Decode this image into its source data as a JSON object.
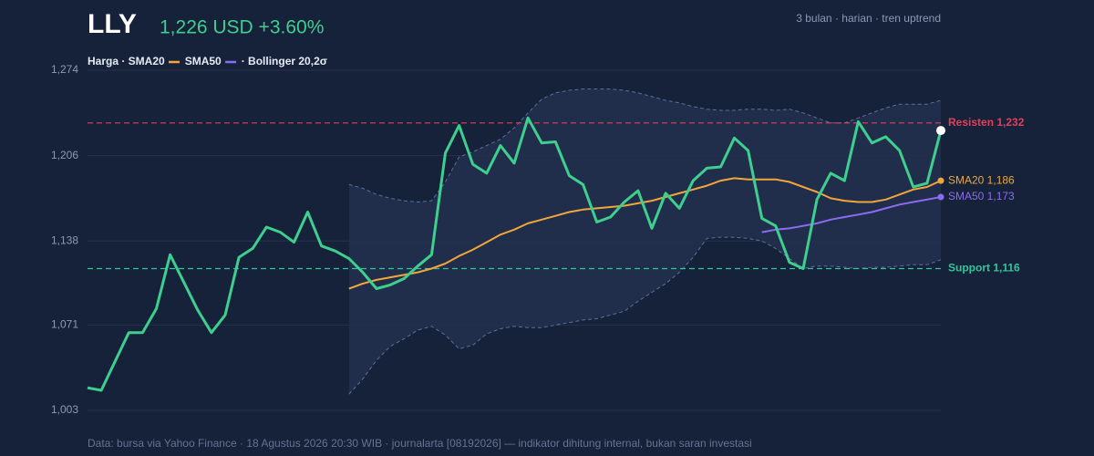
{
  "chart_data": {
    "type": "line",
    "title": "LLY",
    "price_text": "1,226 USD +3.60%",
    "subtitle": "3 bulan · harian · tren uptrend",
    "legend_text": [
      "Harga · SMA20",
      "SMA50",
      "· Bollinger 20,2σ"
    ],
    "footer": "Data: bursa via Yahoo Finance · 18 Agustus 2026 20:30 WIB · journalarta [08192026] — indikator dihitung internal, bukan saran investasi",
    "ylim": [
      1003,
      1274
    ],
    "yticks": [
      {
        "value": 1003,
        "label": "1,003"
      },
      {
        "value": 1071,
        "label": "1,071"
      },
      {
        "value": 1138,
        "label": "1,138"
      },
      {
        "value": 1206,
        "label": "1,206"
      },
      {
        "value": 1274,
        "label": "1,274"
      }
    ],
    "grid": true,
    "series": [
      {
        "color": "#3ecf8e",
        "values": [
          1021,
          1019,
          1042,
          1065,
          1065,
          1084,
          1127,
          1105,
          1083,
          1065,
          1079,
          1125,
          1132,
          1149,
          1145,
          1137,
          1161,
          1134,
          1130,
          1124,
          1113,
          1100,
          1103,
          1108,
          1118,
          1127,
          1208,
          1230,
          1199,
          1192,
          1214,
          1200,
          1236,
          1216,
          1217,
          1190,
          1183,
          1153,
          1157,
          1169,
          1178,
          1148,
          1176,
          1164,
          1186,
          1196,
          1197,
          1220,
          1210,
          1156,
          1150,
          1121,
          1116,
          1171,
          1192,
          1186,
          1233,
          1216,
          1221,
          1210,
          1181,
          1184,
          1226
        ]
      },
      {
        "color": "#f0a63a",
        "end_label": "SMA20 1,186",
        "values": [
          null,
          null,
          null,
          null,
          null,
          null,
          null,
          null,
          null,
          null,
          null,
          null,
          null,
          null,
          null,
          null,
          null,
          null,
          null,
          1100,
          1104,
          1107,
          1109,
          1111,
          1113,
          1116,
          1120,
          1126,
          1131,
          1137,
          1143,
          1147,
          1152,
          1155,
          1158,
          1161,
          1163,
          1164,
          1165,
          1166,
          1168,
          1170,
          1173,
          1176,
          1179,
          1182,
          1186,
          1188,
          1187,
          1187,
          1187,
          1185,
          1181,
          1177,
          1172,
          1170,
          1169,
          1169,
          1171,
          1175,
          1179,
          1181,
          1186
        ]
      },
      {
        "color": "#8b6cf0",
        "end_label": "SMA50 1,173",
        "values": [
          null,
          null,
          null,
          null,
          null,
          null,
          null,
          null,
          null,
          null,
          null,
          null,
          null,
          null,
          null,
          null,
          null,
          null,
          null,
          null,
          null,
          null,
          null,
          null,
          null,
          null,
          null,
          null,
          null,
          null,
          null,
          null,
          null,
          null,
          null,
          null,
          null,
          null,
          null,
          null,
          null,
          null,
          null,
          null,
          null,
          null,
          null,
          null,
          null,
          1145,
          1147,
          1148,
          1150,
          1152,
          1155,
          1157,
          1159,
          1161,
          1164,
          1167,
          1169,
          1171,
          1173
        ]
      }
    ],
    "bollinger": {
      "color": "#5d6f99",
      "fill": "#22304f",
      "upper": [
        null,
        null,
        null,
        null,
        null,
        null,
        null,
        null,
        null,
        null,
        null,
        null,
        null,
        null,
        null,
        null,
        null,
        null,
        null,
        1183,
        1180,
        1175,
        1172,
        1170,
        1169,
        1170,
        1185,
        1205,
        1209,
        1214,
        1219,
        1228,
        1240,
        1251,
        1256,
        1258,
        1259,
        1259,
        1259,
        1258,
        1256,
        1253,
        1250,
        1248,
        1245,
        1243,
        1242,
        1242,
        1243,
        1243,
        1242,
        1243,
        1240,
        1236,
        1232,
        1232,
        1236,
        1240,
        1244,
        1247,
        1247,
        1247,
        1250
      ],
      "lower": [
        null,
        null,
        null,
        null,
        null,
        null,
        null,
        null,
        null,
        null,
        null,
        null,
        null,
        null,
        null,
        null,
        null,
        null,
        null,
        1016,
        1028,
        1043,
        1054,
        1060,
        1067,
        1070,
        1063,
        1052,
        1055,
        1064,
        1068,
        1070,
        1069,
        1069,
        1071,
        1073,
        1075,
        1076,
        1079,
        1082,
        1090,
        1097,
        1104,
        1113,
        1125,
        1140,
        1141,
        1141,
        1140,
        1138,
        1132,
        1124,
        1116,
        1118,
        1118,
        1117,
        1116,
        1117,
        1117,
        1118,
        1119,
        1119,
        1123
      ]
    },
    "reference_lines": [
      {
        "value": 1232,
        "label": "Resisten 1,232",
        "color": "#e0405a"
      },
      {
        "value": 1116,
        "label": "Support 1,116",
        "color": "#2fc79a"
      }
    ]
  }
}
